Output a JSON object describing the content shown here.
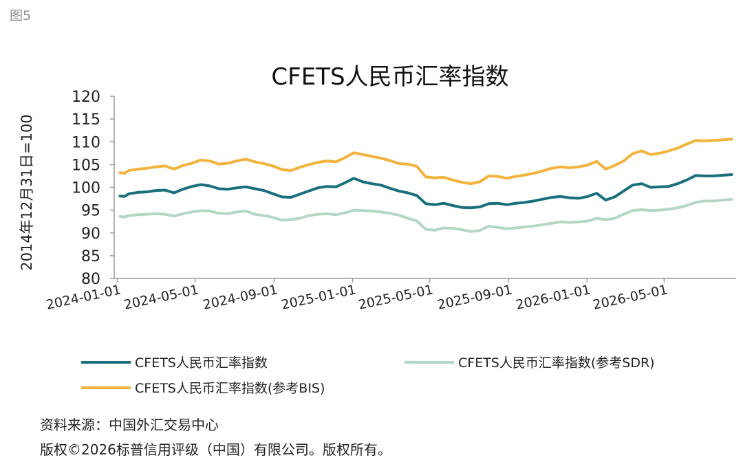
{
  "figure_label": "图5",
  "source_note": "资料来源：中国外汇交易中心",
  "copyright_note": "版权©2026标普信用评级（中国）有限公司。版权所有。",
  "colors": {
    "series_main": "#1a6f7d",
    "series_sdr": "#b3d7c4",
    "series_bis": "#f2b33d",
    "axis": "#999999",
    "text": "#222222"
  },
  "chart_data": {
    "type": "line",
    "title": "CFETS人民币汇率指数",
    "ylabel": "2014年12月31日=100",
    "xlabel": "",
    "ylim": [
      80,
      120
    ],
    "yticks": [
      80,
      85,
      90,
      95,
      100,
      105,
      110,
      115,
      120
    ],
    "xlim": [
      "2023-12-27",
      "2026-08-21"
    ],
    "xticks": [
      "2024-01-01",
      "2024-05-01",
      "2024-09-01",
      "2025-01-01",
      "2025-05-01",
      "2025-09-01",
      "2026-01-01",
      "2026-05-01"
    ],
    "grid": false,
    "legend_position": "bottom",
    "series": [
      {
        "name": "CFETS人民币汇率指数",
        "color": "#1a6f7d",
        "points": [
          [
            "2024-01-05",
            98.1
          ],
          [
            "2024-01-12",
            98.0
          ],
          [
            "2024-01-19",
            98.6
          ],
          [
            "2024-02-02",
            98.9
          ],
          [
            "2024-02-16",
            99.0
          ],
          [
            "2024-03-01",
            99.3
          ],
          [
            "2024-03-15",
            99.4
          ],
          [
            "2024-03-29",
            98.8
          ],
          [
            "2024-04-12",
            99.6
          ],
          [
            "2024-04-26",
            100.2
          ],
          [
            "2024-05-10",
            100.6
          ],
          [
            "2024-05-24",
            100.3
          ],
          [
            "2024-06-07",
            99.7
          ],
          [
            "2024-06-21",
            99.6
          ],
          [
            "2024-07-05",
            99.9
          ],
          [
            "2024-07-19",
            100.1
          ],
          [
            "2024-08-02",
            99.7
          ],
          [
            "2024-08-16",
            99.3
          ],
          [
            "2024-08-30",
            98.6
          ],
          [
            "2024-09-13",
            97.9
          ],
          [
            "2024-09-27",
            97.8
          ],
          [
            "2024-10-11",
            98.5
          ],
          [
            "2024-10-25",
            99.2
          ],
          [
            "2024-11-08",
            99.9
          ],
          [
            "2024-11-22",
            100.2
          ],
          [
            "2024-12-06",
            100.1
          ],
          [
            "2024-12-20",
            101.0
          ],
          [
            "2025-01-03",
            102.0
          ],
          [
            "2025-01-17",
            101.2
          ],
          [
            "2025-01-31",
            100.8
          ],
          [
            "2025-02-14",
            100.5
          ],
          [
            "2025-02-28",
            99.8
          ],
          [
            "2025-03-14",
            99.2
          ],
          [
            "2025-03-28",
            98.8
          ],
          [
            "2025-04-11",
            98.2
          ],
          [
            "2025-04-25",
            96.4
          ],
          [
            "2025-05-09",
            96.2
          ],
          [
            "2025-05-23",
            96.5
          ],
          [
            "2025-06-06",
            96.0
          ],
          [
            "2025-06-20",
            95.6
          ],
          [
            "2025-07-04",
            95.5
          ],
          [
            "2025-07-18",
            95.7
          ],
          [
            "2025-08-01",
            96.4
          ],
          [
            "2025-08-15",
            96.5
          ],
          [
            "2025-08-29",
            96.2
          ],
          [
            "2025-09-12",
            96.5
          ],
          [
            "2025-09-26",
            96.7
          ],
          [
            "2025-10-10",
            97.0
          ],
          [
            "2025-10-24",
            97.4
          ],
          [
            "2025-11-07",
            97.8
          ],
          [
            "2025-11-21",
            98.0
          ],
          [
            "2025-12-05",
            97.7
          ],
          [
            "2025-12-19",
            97.6
          ],
          [
            "2026-01-02",
            98.0
          ],
          [
            "2026-01-16",
            98.7
          ],
          [
            "2026-01-30",
            97.2
          ],
          [
            "2026-02-13",
            97.9
          ],
          [
            "2026-02-27",
            99.2
          ],
          [
            "2026-03-13",
            100.5
          ],
          [
            "2026-03-27",
            100.8
          ],
          [
            "2026-04-10",
            100.0
          ],
          [
            "2026-04-24",
            100.1
          ],
          [
            "2026-05-08",
            100.2
          ],
          [
            "2026-05-22",
            100.8
          ],
          [
            "2026-06-05",
            101.6
          ],
          [
            "2026-06-19",
            102.6
          ],
          [
            "2026-07-03",
            102.5
          ],
          [
            "2026-07-17",
            102.5
          ],
          [
            "2026-08-14",
            102.8
          ]
        ]
      },
      {
        "name": "CFETS人民币汇率指数(参考SDR)",
        "color": "#b3d7c4",
        "points": [
          [
            "2024-01-05",
            93.6
          ],
          [
            "2024-01-12",
            93.5
          ],
          [
            "2024-01-19",
            93.8
          ],
          [
            "2024-02-02",
            94.0
          ],
          [
            "2024-02-16",
            94.1
          ],
          [
            "2024-03-01",
            94.2
          ],
          [
            "2024-03-15",
            94.1
          ],
          [
            "2024-03-29",
            93.7
          ],
          [
            "2024-04-12",
            94.2
          ],
          [
            "2024-04-26",
            94.6
          ],
          [
            "2024-05-10",
            94.9
          ],
          [
            "2024-05-24",
            94.8
          ],
          [
            "2024-06-07",
            94.3
          ],
          [
            "2024-06-21",
            94.2
          ],
          [
            "2024-07-05",
            94.6
          ],
          [
            "2024-07-19",
            94.8
          ],
          [
            "2024-08-02",
            94.1
          ],
          [
            "2024-08-16",
            93.8
          ],
          [
            "2024-08-30",
            93.4
          ],
          [
            "2024-09-13",
            92.8
          ],
          [
            "2024-09-27",
            92.9
          ],
          [
            "2024-10-11",
            93.2
          ],
          [
            "2024-10-25",
            93.8
          ],
          [
            "2024-11-08",
            94.1
          ],
          [
            "2024-11-22",
            94.2
          ],
          [
            "2024-12-06",
            94.0
          ],
          [
            "2024-12-20",
            94.4
          ],
          [
            "2025-01-03",
            95.0
          ],
          [
            "2025-01-17",
            94.9
          ],
          [
            "2025-01-31",
            94.8
          ],
          [
            "2025-02-14",
            94.6
          ],
          [
            "2025-02-28",
            94.3
          ],
          [
            "2025-03-14",
            93.9
          ],
          [
            "2025-03-28",
            93.2
          ],
          [
            "2025-04-11",
            92.6
          ],
          [
            "2025-04-25",
            90.8
          ],
          [
            "2025-05-09",
            90.6
          ],
          [
            "2025-05-23",
            91.1
          ],
          [
            "2025-06-06",
            91.0
          ],
          [
            "2025-06-20",
            90.7
          ],
          [
            "2025-07-04",
            90.3
          ],
          [
            "2025-07-18",
            90.5
          ],
          [
            "2025-08-01",
            91.5
          ],
          [
            "2025-08-15",
            91.2
          ],
          [
            "2025-08-29",
            90.9
          ],
          [
            "2025-09-12",
            91.1
          ],
          [
            "2025-09-26",
            91.3
          ],
          [
            "2025-10-10",
            91.5
          ],
          [
            "2025-10-24",
            91.8
          ],
          [
            "2025-11-07",
            92.1
          ],
          [
            "2025-11-21",
            92.4
          ],
          [
            "2025-12-05",
            92.3
          ],
          [
            "2025-12-19",
            92.4
          ],
          [
            "2026-01-02",
            92.6
          ],
          [
            "2026-01-16",
            93.2
          ],
          [
            "2026-01-30",
            92.9
          ],
          [
            "2026-02-13",
            93.2
          ],
          [
            "2026-02-27",
            94.1
          ],
          [
            "2026-03-13",
            94.9
          ],
          [
            "2026-03-27",
            95.1
          ],
          [
            "2026-04-10",
            94.9
          ],
          [
            "2026-04-24",
            95.0
          ],
          [
            "2026-05-08",
            95.2
          ],
          [
            "2026-05-22",
            95.5
          ],
          [
            "2026-06-05",
            96.0
          ],
          [
            "2026-06-19",
            96.7
          ],
          [
            "2026-07-03",
            97.0
          ],
          [
            "2026-07-17",
            97.0
          ],
          [
            "2026-08-14",
            97.4
          ]
        ]
      },
      {
        "name": "CFETS人民币汇率指数(参考BIS)",
        "color": "#f2b33d",
        "points": [
          [
            "2024-01-05",
            103.2
          ],
          [
            "2024-01-12",
            103.1
          ],
          [
            "2024-01-19",
            103.7
          ],
          [
            "2024-02-02",
            104.0
          ],
          [
            "2024-02-16",
            104.2
          ],
          [
            "2024-03-01",
            104.5
          ],
          [
            "2024-03-15",
            104.7
          ],
          [
            "2024-03-29",
            104.0
          ],
          [
            "2024-04-12",
            104.8
          ],
          [
            "2024-04-26",
            105.3
          ],
          [
            "2024-05-10",
            106.0
          ],
          [
            "2024-05-24",
            105.8
          ],
          [
            "2024-06-07",
            105.1
          ],
          [
            "2024-06-21",
            105.3
          ],
          [
            "2024-07-05",
            105.8
          ],
          [
            "2024-07-19",
            106.2
          ],
          [
            "2024-08-02",
            105.6
          ],
          [
            "2024-08-16",
            105.2
          ],
          [
            "2024-08-30",
            104.7
          ],
          [
            "2024-09-13",
            103.9
          ],
          [
            "2024-09-27",
            103.7
          ],
          [
            "2024-10-11",
            104.4
          ],
          [
            "2024-10-25",
            105.0
          ],
          [
            "2024-11-08",
            105.5
          ],
          [
            "2024-11-22",
            105.8
          ],
          [
            "2024-12-06",
            105.6
          ],
          [
            "2024-12-20",
            106.5
          ],
          [
            "2025-01-03",
            107.6
          ],
          [
            "2025-01-17",
            107.2
          ],
          [
            "2025-01-31",
            106.8
          ],
          [
            "2025-02-14",
            106.4
          ],
          [
            "2025-02-28",
            105.9
          ],
          [
            "2025-03-14",
            105.2
          ],
          [
            "2025-03-28",
            105.1
          ],
          [
            "2025-04-11",
            104.6
          ],
          [
            "2025-04-25",
            102.3
          ],
          [
            "2025-05-09",
            102.1
          ],
          [
            "2025-05-23",
            102.2
          ],
          [
            "2025-06-06",
            101.6
          ],
          [
            "2025-06-20",
            101.1
          ],
          [
            "2025-07-04",
            100.8
          ],
          [
            "2025-07-18",
            101.2
          ],
          [
            "2025-08-01",
            102.5
          ],
          [
            "2025-08-15",
            102.4
          ],
          [
            "2025-08-29",
            102.0
          ],
          [
            "2025-09-12",
            102.4
          ],
          [
            "2025-09-26",
            102.7
          ],
          [
            "2025-10-10",
            103.1
          ],
          [
            "2025-10-24",
            103.6
          ],
          [
            "2025-11-07",
            104.2
          ],
          [
            "2025-11-21",
            104.5
          ],
          [
            "2025-12-05",
            104.3
          ],
          [
            "2025-12-19",
            104.5
          ],
          [
            "2026-01-02",
            104.9
          ],
          [
            "2026-01-16",
            105.7
          ],
          [
            "2026-01-30",
            104.0
          ],
          [
            "2026-02-13",
            104.8
          ],
          [
            "2026-02-27",
            105.8
          ],
          [
            "2026-03-13",
            107.4
          ],
          [
            "2026-03-27",
            108.0
          ],
          [
            "2026-04-10",
            107.2
          ],
          [
            "2026-04-24",
            107.5
          ],
          [
            "2026-05-08",
            108.0
          ],
          [
            "2026-05-22",
            108.6
          ],
          [
            "2026-06-05",
            109.5
          ],
          [
            "2026-06-19",
            110.3
          ],
          [
            "2026-07-03",
            110.2
          ],
          [
            "2026-07-17",
            110.3
          ],
          [
            "2026-08-14",
            110.6
          ]
        ]
      }
    ]
  }
}
